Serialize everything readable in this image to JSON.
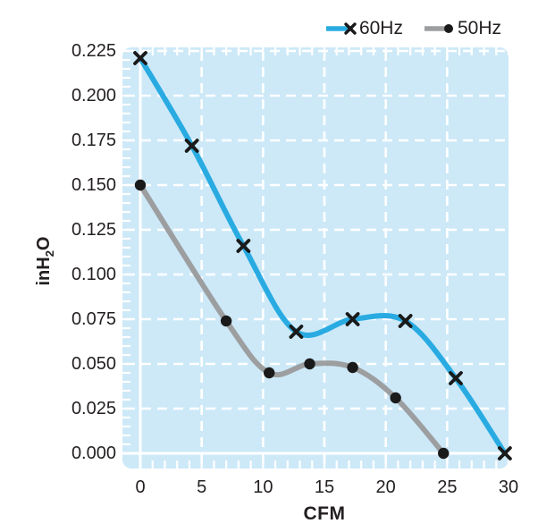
{
  "page": {
    "background": "#ffffff"
  },
  "legend": {
    "position": "top-right",
    "items": [
      {
        "label": "60Hz",
        "color": "#29abe2",
        "marker": "x",
        "marker_color": "#1a1a1a"
      },
      {
        "label": "50Hz",
        "color": "#9c9ea0",
        "marker": "circle",
        "marker_color": "#1a1a1a"
      }
    ]
  },
  "axis": {
    "xlabel": "CFM",
    "ylabel": "inH2O",
    "ylabel_parts": {
      "pre": "inH",
      "sub": "2",
      "post": "O"
    }
  },
  "chart_data": {
    "type": "line",
    "title": "",
    "xlabel": "CFM",
    "ylabel": "inH2O",
    "xlim": [
      0,
      30
    ],
    "ylim": [
      0,
      0.225
    ],
    "grid": "white-dashed on light-blue panel, solid white zero axes, minor ticks every 1 CFM and 0.005 inH2O",
    "legend_position": "top-right",
    "plot_bg": "#cde9f8",
    "gridline_color": "#ffffff",
    "x_ticks": [
      {
        "value": 0,
        "label": "0"
      },
      {
        "value": 5,
        "label": "5"
      },
      {
        "value": 10,
        "label": "10"
      },
      {
        "value": 15,
        "label": "15"
      },
      {
        "value": 20,
        "label": "20"
      },
      {
        "value": 25,
        "label": "25"
      },
      {
        "value": 30,
        "label": "30"
      }
    ],
    "y_ticks": [
      {
        "value": 0.225,
        "label": "0.225"
      },
      {
        "value": 0.2,
        "label": "0.200"
      },
      {
        "value": 0.175,
        "label": "0.175"
      },
      {
        "value": 0.15,
        "label": "0.150"
      },
      {
        "value": 0.125,
        "label": "0.125"
      },
      {
        "value": 0.1,
        "label": "0.100"
      },
      {
        "value": 0.075,
        "label": "0.075"
      },
      {
        "value": 0.05,
        "label": "0.050"
      },
      {
        "value": 0.025,
        "label": "0.025"
      },
      {
        "value": 0.0,
        "label": "0.000"
      }
    ],
    "series": [
      {
        "name": "60Hz",
        "color": "#29abe2",
        "marker": "x",
        "marker_color": "#1a1a1a",
        "points": [
          [
            0,
            0.221
          ],
          [
            4.2,
            0.172
          ],
          [
            8.4,
            0.116
          ],
          [
            12.7,
            0.068
          ],
          [
            17.3,
            0.075
          ],
          [
            21.6,
            0.074
          ],
          [
            25.7,
            0.042
          ],
          [
            29.7,
            0.0
          ]
        ]
      },
      {
        "name": "50Hz",
        "color": "#9c9ea0",
        "marker": "circle",
        "marker_color": "#1a1a1a",
        "points": [
          [
            0,
            0.15
          ],
          [
            7.0,
            0.074
          ],
          [
            10.5,
            0.045
          ],
          [
            13.8,
            0.05
          ],
          [
            17.3,
            0.048
          ],
          [
            20.8,
            0.031
          ],
          [
            24.7,
            0.0
          ]
        ]
      }
    ]
  }
}
